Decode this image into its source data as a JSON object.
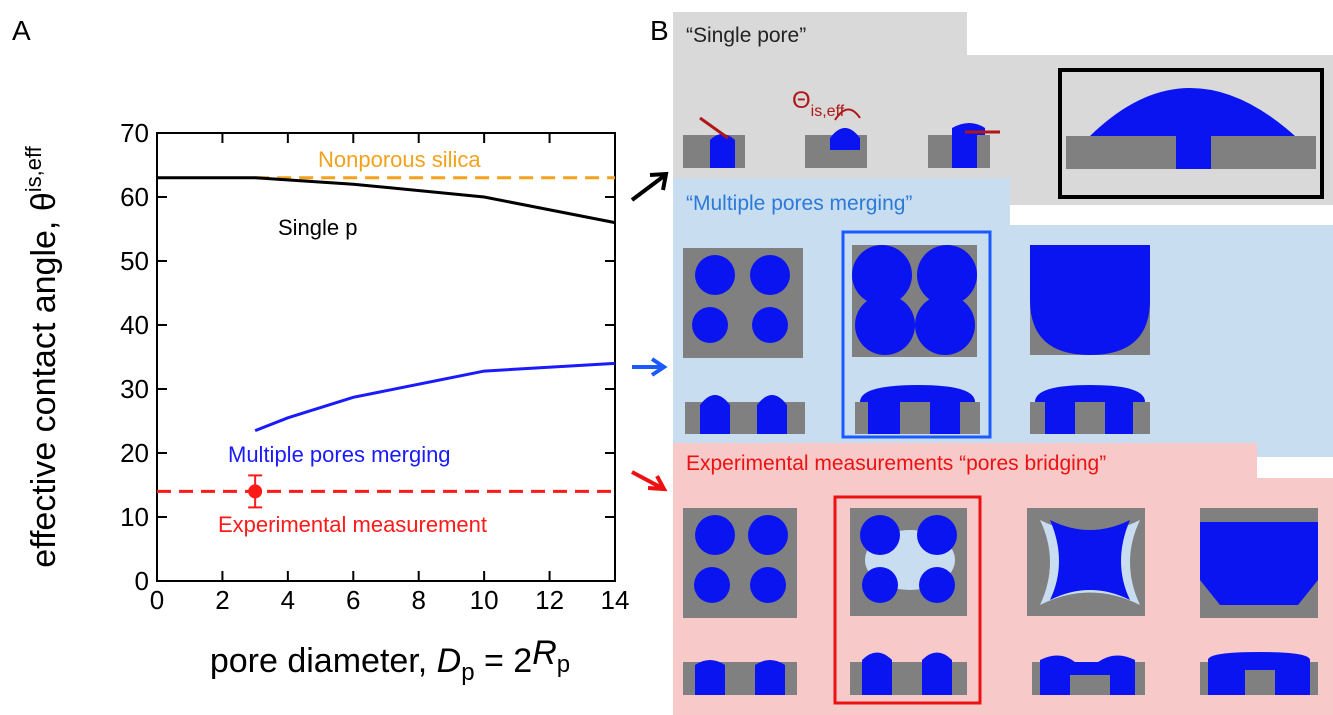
{
  "chart_data": {
    "type": "line",
    "panel_label": "A",
    "ylabel": [
      "effective contact angle, θ",
      "is,eff"
    ],
    "xlabel": [
      "pore diameter, ",
      "D",
      "p",
      " = 2",
      "R",
      "p"
    ],
    "xlim": [
      0,
      14
    ],
    "xticks": [
      0,
      2,
      4,
      6,
      8,
      10,
      12,
      14
    ],
    "ylim": [
      0,
      70
    ],
    "yticks": [
      0,
      10,
      20,
      30,
      40,
      50,
      60,
      70
    ],
    "series": [
      {
        "name": "Nonporous silica",
        "color": "#f2a21c",
        "dashed": true,
        "x": [
          3,
          14
        ],
        "values": [
          63,
          63
        ]
      },
      {
        "name": "Single p",
        "color": "#000000",
        "dashed": false,
        "x": [
          0,
          3,
          6,
          10,
          14
        ],
        "values": [
          63,
          63,
          62,
          60,
          56
        ]
      },
      {
        "name": "Multiple pores merging",
        "color": "#1a1aff",
        "dashed": false,
        "x": [
          3,
          4,
          6,
          10,
          14
        ],
        "values": [
          23.5,
          25.5,
          28.7,
          32.8,
          34
        ]
      },
      {
        "name": "Experimental measurement",
        "color": "#ff1a1a",
        "dashed": true,
        "x": [
          0,
          14
        ],
        "values": [
          14,
          14
        ]
      }
    ],
    "points": [
      {
        "x": 3,
        "value": 14,
        "error": 2.5,
        "color": "#ff1a1a"
      }
    ]
  },
  "panel_b": {
    "label": "B",
    "single_pore": {
      "title": "“Single pore”",
      "angle_symbol": "Θ",
      "angle_sub": "is,eff"
    },
    "multiple": {
      "title": "“Multiple pores merging”"
    },
    "bridging": {
      "title": "Experimental measurements “pores bridging”"
    }
  }
}
